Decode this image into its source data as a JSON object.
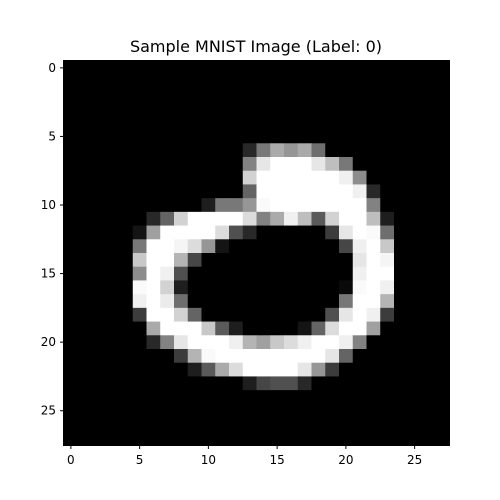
{
  "chart_data": {
    "type": "heatmap",
    "title": "Sample MNIST Image (Label: 0)",
    "colormap": "gray",
    "value_range": [
      0,
      255
    ],
    "grid": false,
    "xlim": [
      -0.5,
      27.5
    ],
    "ylim": [
      27.5,
      -0.5
    ],
    "x_ticks": [
      0,
      5,
      10,
      15,
      20,
      25
    ],
    "y_ticks": [
      0,
      5,
      10,
      15,
      20,
      25
    ],
    "x_tick_labels": [
      "0",
      "5",
      "10",
      "15",
      "20",
      "25"
    ],
    "y_tick_labels": [
      "0",
      "5",
      "10",
      "15",
      "20",
      "25"
    ],
    "pixels": [
      [
        0,
        0,
        0,
        0,
        0,
        0,
        0,
        0,
        0,
        0,
        0,
        0,
        0,
        0,
        0,
        0,
        0,
        0,
        0,
        0,
        0,
        0,
        0,
        0,
        0,
        0,
        0,
        0
      ],
      [
        0,
        0,
        0,
        0,
        0,
        0,
        0,
        0,
        0,
        0,
        0,
        0,
        0,
        0,
        0,
        0,
        0,
        0,
        0,
        0,
        0,
        0,
        0,
        0,
        0,
        0,
        0,
        0
      ],
      [
        0,
        0,
        0,
        0,
        0,
        0,
        0,
        0,
        0,
        0,
        0,
        0,
        0,
        0,
        0,
        0,
        0,
        0,
        0,
        0,
        0,
        0,
        0,
        0,
        0,
        0,
        0,
        0
      ],
      [
        0,
        0,
        0,
        0,
        0,
        0,
        0,
        0,
        0,
        0,
        0,
        0,
        0,
        0,
        0,
        0,
        0,
        0,
        0,
        0,
        0,
        0,
        0,
        0,
        0,
        0,
        0,
        0
      ],
      [
        0,
        0,
        0,
        0,
        0,
        0,
        0,
        0,
        0,
        0,
        0,
        0,
        0,
        0,
        0,
        0,
        0,
        0,
        0,
        0,
        0,
        0,
        0,
        0,
        0,
        0,
        0,
        0
      ],
      [
        0,
        0,
        0,
        0,
        0,
        0,
        0,
        0,
        0,
        0,
        0,
        0,
        0,
        0,
        0,
        0,
        0,
        0,
        0,
        0,
        0,
        0,
        0,
        0,
        0,
        0,
        0,
        0
      ],
      [
        0,
        0,
        0,
        0,
        0,
        0,
        0,
        0,
        0,
        0,
        0,
        0,
        0,
        40,
        120,
        170,
        150,
        170,
        110,
        0,
        0,
        0,
        0,
        0,
        0,
        0,
        0,
        0
      ],
      [
        0,
        0,
        0,
        0,
        0,
        0,
        0,
        0,
        0,
        0,
        0,
        0,
        0,
        130,
        230,
        255,
        255,
        255,
        230,
        190,
        120,
        0,
        0,
        0,
        0,
        0,
        0,
        0
      ],
      [
        0,
        0,
        0,
        0,
        0,
        0,
        0,
        0,
        0,
        0,
        0,
        0,
        0,
        210,
        255,
        255,
        255,
        255,
        255,
        255,
        240,
        140,
        0,
        0,
        0,
        0,
        0,
        0
      ],
      [
        0,
        0,
        0,
        0,
        0,
        0,
        0,
        0,
        0,
        0,
        0,
        0,
        0,
        100,
        255,
        255,
        255,
        255,
        255,
        255,
        255,
        240,
        40,
        0,
        0,
        0,
        0,
        0
      ],
      [
        0,
        0,
        0,
        0,
        0,
        0,
        0,
        0,
        0,
        0,
        30,
        120,
        120,
        150,
        250,
        255,
        255,
        255,
        255,
        255,
        255,
        255,
        130,
        0,
        0,
        0,
        0,
        0
      ],
      [
        0,
        0,
        0,
        0,
        0,
        0,
        40,
        100,
        210,
        255,
        255,
        255,
        255,
        220,
        130,
        170,
        240,
        190,
        90,
        210,
        255,
        255,
        190,
        30,
        0,
        0,
        0,
        0
      ],
      [
        0,
        0,
        0,
        0,
        0,
        20,
        160,
        255,
        255,
        255,
        255,
        220,
        80,
        40,
        0,
        0,
        0,
        0,
        0,
        60,
        230,
        255,
        250,
        110,
        0,
        0,
        0,
        0
      ],
      [
        0,
        0,
        0,
        0,
        0,
        120,
        255,
        255,
        245,
        220,
        150,
        20,
        0,
        0,
        0,
        0,
        0,
        0,
        0,
        0,
        70,
        240,
        255,
        200,
        0,
        0,
        0,
        0
      ],
      [
        0,
        0,
        0,
        0,
        0,
        200,
        255,
        255,
        180,
        70,
        0,
        0,
        0,
        0,
        0,
        0,
        0,
        0,
        0,
        0,
        0,
        230,
        255,
        245,
        0,
        0,
        0,
        0
      ],
      [
        0,
        0,
        0,
        0,
        0,
        140,
        255,
        240,
        80,
        0,
        0,
        0,
        0,
        0,
        0,
        0,
        0,
        0,
        0,
        0,
        0,
        240,
        255,
        255,
        0,
        0,
        0,
        0
      ],
      [
        0,
        0,
        0,
        0,
        0,
        250,
        255,
        210,
        30,
        0,
        0,
        0,
        0,
        0,
        0,
        0,
        0,
        0,
        0,
        0,
        10,
        250,
        255,
        240,
        0,
        0,
        0,
        0
      ],
      [
        0,
        0,
        0,
        0,
        0,
        240,
        255,
        235,
        110,
        0,
        0,
        0,
        0,
        0,
        0,
        0,
        0,
        0,
        0,
        0,
        120,
        255,
        255,
        180,
        0,
        0,
        0,
        0
      ],
      [
        0,
        0,
        0,
        0,
        0,
        60,
        255,
        255,
        210,
        100,
        0,
        0,
        0,
        0,
        0,
        0,
        0,
        0,
        0,
        80,
        230,
        255,
        240,
        60,
        0,
        0,
        0,
        0
      ],
      [
        0,
        0,
        0,
        0,
        0,
        0,
        170,
        255,
        255,
        255,
        200,
        90,
        30,
        0,
        0,
        0,
        0,
        20,
        100,
        220,
        255,
        255,
        160,
        0,
        0,
        0,
        0,
        0
      ],
      [
        0,
        0,
        0,
        0,
        0,
        0,
        40,
        130,
        230,
        255,
        255,
        255,
        240,
        180,
        160,
        200,
        220,
        240,
        255,
        255,
        240,
        130,
        0,
        0,
        0,
        0,
        0,
        0
      ],
      [
        0,
        0,
        0,
        0,
        0,
        0,
        0,
        0,
        60,
        180,
        250,
        255,
        255,
        255,
        255,
        255,
        255,
        255,
        255,
        230,
        100,
        0,
        0,
        0,
        0,
        0,
        0,
        0
      ],
      [
        0,
        0,
        0,
        0,
        0,
        0,
        0,
        0,
        0,
        30,
        90,
        170,
        220,
        255,
        255,
        255,
        255,
        230,
        150,
        60,
        0,
        0,
        0,
        0,
        0,
        0,
        0,
        0
      ],
      [
        0,
        0,
        0,
        0,
        0,
        0,
        0,
        0,
        0,
        0,
        0,
        0,
        0,
        30,
        70,
        80,
        80,
        40,
        0,
        0,
        0,
        0,
        0,
        0,
        0,
        0,
        0,
        0
      ],
      [
        0,
        0,
        0,
        0,
        0,
        0,
        0,
        0,
        0,
        0,
        0,
        0,
        0,
        0,
        0,
        0,
        0,
        0,
        0,
        0,
        0,
        0,
        0,
        0,
        0,
        0,
        0,
        0
      ],
      [
        0,
        0,
        0,
        0,
        0,
        0,
        0,
        0,
        0,
        0,
        0,
        0,
        0,
        0,
        0,
        0,
        0,
        0,
        0,
        0,
        0,
        0,
        0,
        0,
        0,
        0,
        0,
        0
      ],
      [
        0,
        0,
        0,
        0,
        0,
        0,
        0,
        0,
        0,
        0,
        0,
        0,
        0,
        0,
        0,
        0,
        0,
        0,
        0,
        0,
        0,
        0,
        0,
        0,
        0,
        0,
        0,
        0
      ],
      [
        0,
        0,
        0,
        0,
        0,
        0,
        0,
        0,
        0,
        0,
        0,
        0,
        0,
        0,
        0,
        0,
        0,
        0,
        0,
        0,
        0,
        0,
        0,
        0,
        0,
        0,
        0,
        0
      ]
    ]
  }
}
